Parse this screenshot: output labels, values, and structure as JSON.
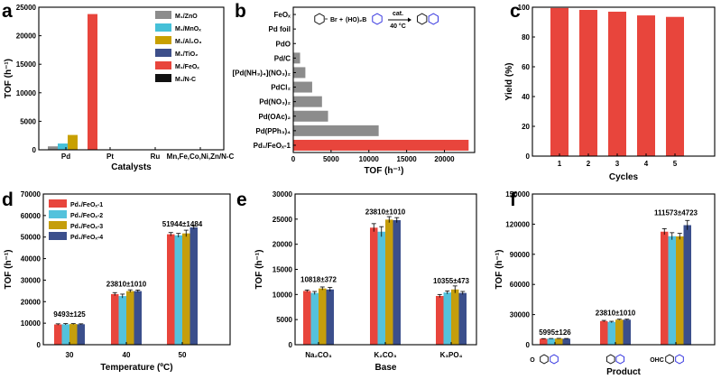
{
  "colors": {
    "red": "#e8453c",
    "gray": "#8c8c8c",
    "cyan": "#45c0d8",
    "gold": "#c8a000",
    "navy": "#3d4f8a",
    "black": "#111111",
    "blue": "#2222dd",
    "grp1": "#e8453c",
    "grp2": "#54c2dc",
    "grp3": "#c59e0c",
    "grp4": "#3b4f8c"
  },
  "chart_data": [
    {
      "panel": "a",
      "type": "bar",
      "ylabel": "TOF (h⁻¹)",
      "xlabel": "Catalysts",
      "ylim": [
        0,
        25000
      ],
      "yticks": [
        0,
        5000,
        10000,
        15000,
        20000,
        25000
      ],
      "categories": [
        "Pd",
        "Pt",
        "Ru",
        "Mn,Fe,Co,Ni,Zn/N-C"
      ],
      "series": [
        {
          "name": "M₁/ZnO",
          "values": [
            600,
            0,
            0,
            0
          ]
        },
        {
          "name": "M₁/MnOₓ",
          "values": [
            1100,
            0,
            0,
            0
          ]
        },
        {
          "name": "M₁/Al₂O₃",
          "values": [
            2600,
            0,
            0,
            0
          ]
        },
        {
          "name": "M₁/TiO₂",
          "values": [
            0,
            0,
            0,
            0
          ]
        },
        {
          "name": "M₁/FeOₓ",
          "values": [
            23800,
            0,
            0,
            0
          ]
        },
        {
          "name": "M₁/N-C",
          "values": [
            0,
            0,
            0,
            0
          ]
        }
      ]
    },
    {
      "panel": "b",
      "type": "bar",
      "orientation": "horizontal",
      "xlabel": "TOF (h⁻¹)",
      "xlim": [
        0,
        24000
      ],
      "xticks": [
        0,
        5000,
        10000,
        15000,
        20000
      ],
      "categories": [
        "FeOₓ",
        "Pd foil",
        "PdO",
        "Pd/C",
        "[Pd(NH₃)₄](NO₃)₂",
        "PdCl₂",
        "Pd(NO₃)₂",
        "Pd(OAc)₂",
        "Pd(PPh₃)₄",
        "Pd₁/FeOₓ-1"
      ],
      "values": [
        0,
        0,
        0,
        900,
        1600,
        2500,
        3800,
        4600,
        11300,
        23200
      ],
      "reaction": {
        "reagent": "(HO)₂B",
        "catalyst": "cat.",
        "temperature": "40 °C"
      }
    },
    {
      "panel": "c",
      "type": "bar",
      "ylabel": "Yield (%)",
      "xlabel": "Cycles",
      "ylim": [
        0,
        100
      ],
      "yticks": [
        0,
        20,
        40,
        60,
        80,
        100
      ],
      "categories": [
        "1",
        "2",
        "3",
        "4",
        "5"
      ],
      "values": [
        99.5,
        98.2,
        97,
        94.5,
        93.5
      ]
    },
    {
      "panel": "d",
      "type": "bar",
      "ylabel": "TOF (h⁻¹)",
      "xlabel": "Temperature (ºC)",
      "ylim": [
        0,
        70000
      ],
      "yticks": [
        0,
        10000,
        20000,
        30000,
        40000,
        50000,
        60000,
        70000
      ],
      "categories": [
        "30",
        "40",
        "50"
      ],
      "series": [
        {
          "name": "Pd₁/FeOₓ-1",
          "values": [
            9400,
            23500,
            51300
          ],
          "errors": [
            300,
            700,
            800
          ]
        },
        {
          "name": "Pd₁/FeOₓ-2",
          "values": [
            9500,
            22600,
            50800
          ],
          "errors": [
            300,
            900,
            900
          ]
        },
        {
          "name": "Pd₁/FeOₓ-3",
          "values": [
            9600,
            24900,
            51700
          ],
          "errors": [
            200,
            600,
            1500
          ]
        },
        {
          "name": "Pd₁/FeOₓ-4",
          "values": [
            9500,
            24900,
            54500
          ],
          "errors": [
            200,
            500,
            700
          ]
        }
      ],
      "annotations": [
        "9493±125",
        "23810±1010",
        "51944±1484"
      ]
    },
    {
      "panel": "e",
      "type": "bar",
      "ylabel": "TOF (h⁻¹)",
      "xlabel": "Base",
      "ylim": [
        0,
        30000
      ],
      "yticks": [
        0,
        5000,
        10000,
        15000,
        20000,
        25000,
        30000
      ],
      "categories": [
        "Na₂CO₃",
        "K₂CO₃",
        "K₃PO₄"
      ],
      "series": [
        {
          "name": "Pd₁/FeOₓ-1",
          "values": [
            10700,
            23300,
            9700
          ],
          "errors": [
            200,
            800,
            300
          ]
        },
        {
          "name": "Pd₁/FeOₓ-2",
          "values": [
            10300,
            22500,
            10400
          ],
          "errors": [
            300,
            1000,
            300
          ]
        },
        {
          "name": "Pd₁/FeOₓ-3",
          "values": [
            11200,
            24900,
            11000
          ],
          "errors": [
            300,
            600,
            700
          ]
        },
        {
          "name": "Pd₁/FeOₓ-4",
          "values": [
            11000,
            24800,
            10300
          ],
          "errors": [
            400,
            500,
            300
          ]
        }
      ],
      "annotations": [
        "10818±372",
        "23810±1010",
        "10355±473"
      ]
    },
    {
      "panel": "f",
      "type": "bar",
      "ylabel": "TOF (h⁻¹)",
      "xlabel": "Product",
      "ylim": [
        0,
        150000
      ],
      "yticks": [
        0,
        30000,
        60000,
        90000,
        120000,
        150000
      ],
      "categories": [
        "methoxybiphenyl",
        "biphenyl",
        "biphenylcarbaldehyde"
      ],
      "structure_labels": [
        "O",
        "",
        "OHC"
      ],
      "series": [
        {
          "name": "Pd₁/FeOₓ-1",
          "values": [
            5900,
            23500,
            112500
          ],
          "errors": [
            200,
            700,
            3000
          ]
        },
        {
          "name": "Pd₁/FeOₓ-2",
          "values": [
            6000,
            22600,
            108000
          ],
          "errors": [
            200,
            700,
            3500
          ]
        },
        {
          "name": "Pd₁/FeOₓ-3",
          "values": [
            6100,
            24900,
            107800
          ],
          "errors": [
            200,
            500,
            3000
          ]
        },
        {
          "name": "Pd₁/FeOₓ-4",
          "values": [
            6000,
            24900,
            119000
          ],
          "errors": [
            200,
            500,
            4700
          ]
        }
      ],
      "annotations": [
        "5995±126",
        "23810±1010",
        "111573±4723"
      ]
    }
  ]
}
